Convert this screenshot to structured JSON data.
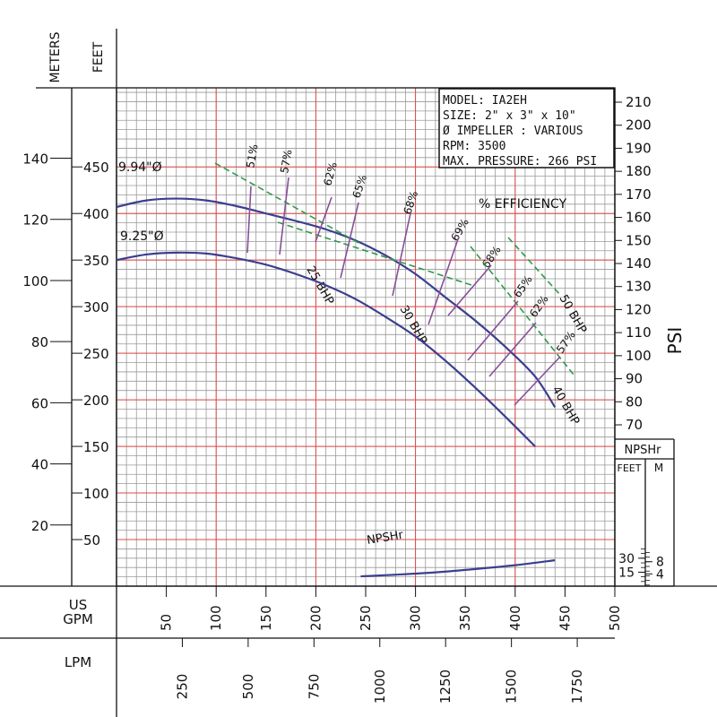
{
  "chart_data": {
    "type": "line",
    "axes": {
      "meters_label": "METERS",
      "feet_label": "FEET",
      "psi_label": "PSI",
      "gpm_label": [
        "US",
        "GPM"
      ],
      "lpm_label": "LPM",
      "npshr_box_label": "NPSHr",
      "npshr_feet_label": "FEET",
      "npshr_m_label": "M",
      "feet_ticks": [
        50,
        100,
        150,
        200,
        250,
        300,
        350,
        400,
        450
      ],
      "meter_ticks": [
        20,
        40,
        60,
        80,
        100,
        120,
        140
      ],
      "psi_ticks": [
        70,
        80,
        90,
        100,
        110,
        120,
        130,
        140,
        150,
        160,
        170,
        180,
        190,
        200,
        210
      ],
      "gpm_ticks": [
        50,
        100,
        150,
        200,
        250,
        300,
        350,
        400,
        450,
        500
      ],
      "lpm_ticks": [
        250,
        500,
        750,
        1000,
        1250,
        1500,
        1750
      ],
      "npshr_feet_ticks": [
        15,
        30
      ],
      "npshr_m_ticks": [
        4,
        8
      ],
      "gpm_range": [
        0,
        500
      ],
      "feet_range": [
        0,
        490
      ],
      "grid": true
    },
    "info_box": [
      "MODEL: IA2EH",
      "SIZE: 2\" x 3\" x 10\"",
      "Ø IMPELLER : VARIOUS",
      "RPM: 3500",
      "MAX. PRESSURE: 266 PSI"
    ],
    "series": [
      {
        "name": "9.94\"Ø",
        "x_gpm": [
          0,
          30,
          60,
          90,
          120,
          150,
          180,
          210,
          240,
          270,
          300,
          330,
          360,
          390,
          420,
          440
        ],
        "y_feet": [
          407,
          414,
          416,
          414,
          408,
          400,
          392,
          383,
          371,
          355,
          335,
          310,
          285,
          257,
          225,
          192
        ]
      },
      {
        "name": "9.25\"Ø",
        "x_gpm": [
          0,
          30,
          60,
          90,
          120,
          150,
          180,
          210,
          240,
          270,
          300,
          330,
          360,
          390,
          420
        ],
        "y_feet": [
          350,
          356,
          358,
          357,
          352,
          345,
          335,
          323,
          308,
          289,
          268,
          242,
          213,
          182,
          150
        ]
      },
      {
        "name": "NPSHr",
        "x_gpm": [
          245,
          280,
          320,
          360,
          400,
          440
        ],
        "y_feet": [
          10.5,
          12.3,
          14.8,
          18.4,
          22.5,
          27.8
        ]
      }
    ],
    "efficiency_title": "% EFFICIENCY",
    "efficiency_labels": [
      "51%",
      "57%",
      "62%",
      "65%",
      "68%",
      "69%",
      "68%",
      "65%",
      "62%",
      "57%"
    ],
    "bhp_labels": [
      "25 BHP",
      "30 BHP",
      "40 BHP",
      "50 BHP"
    ]
  }
}
